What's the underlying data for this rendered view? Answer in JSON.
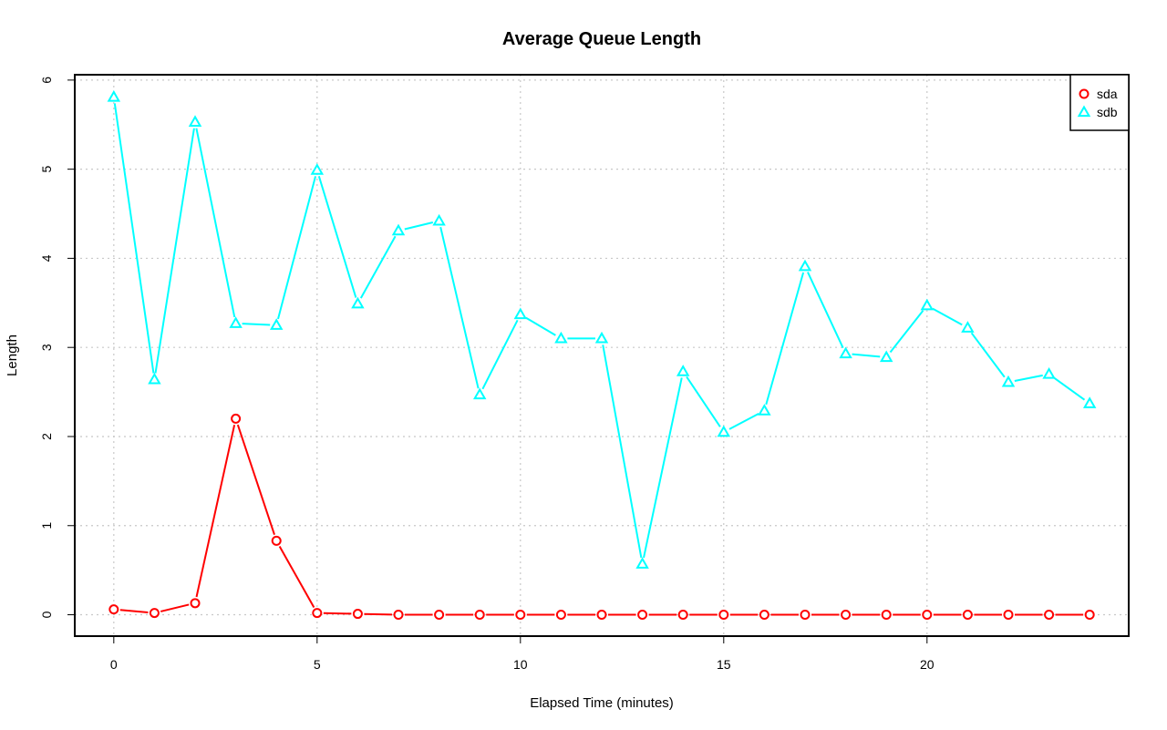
{
  "chart_data": {
    "type": "line",
    "title": "Average Queue Length",
    "xlabel": "Elapsed Time (minutes)",
    "ylabel": "Length",
    "xlim": [
      -0.96,
      24.96
    ],
    "ylim": [
      -0.24,
      6.06
    ],
    "xticks": [
      0,
      5,
      10,
      15,
      20
    ],
    "yticks": [
      0,
      1,
      2,
      3,
      4,
      5,
      6
    ],
    "grid": true,
    "legend_position": "top-right",
    "x": [
      0,
      1,
      2,
      3,
      4,
      5,
      6,
      7,
      8,
      9,
      10,
      11,
      12,
      13,
      14,
      15,
      16,
      17,
      18,
      19,
      20,
      21,
      22,
      23,
      24
    ],
    "series": [
      {
        "name": "sda",
        "color": "#ff0000",
        "marker": "circle",
        "values": [
          0.06,
          0.02,
          0.13,
          2.2,
          0.83,
          0.02,
          0.01,
          0,
          0,
          0,
          0,
          0,
          0,
          0,
          0,
          0,
          0,
          0,
          0,
          0,
          0,
          0,
          0,
          0,
          0
        ]
      },
      {
        "name": "sdb",
        "color": "#00ffff",
        "marker": "triangle",
        "values": [
          5.81,
          2.64,
          5.53,
          3.27,
          3.25,
          4.99,
          3.49,
          4.31,
          4.42,
          2.47,
          3.37,
          3.1,
          3.1,
          0.57,
          2.73,
          2.05,
          2.29,
          3.91,
          2.93,
          2.89,
          3.47,
          3.22,
          2.61,
          2.7,
          2.37
        ]
      }
    ]
  }
}
